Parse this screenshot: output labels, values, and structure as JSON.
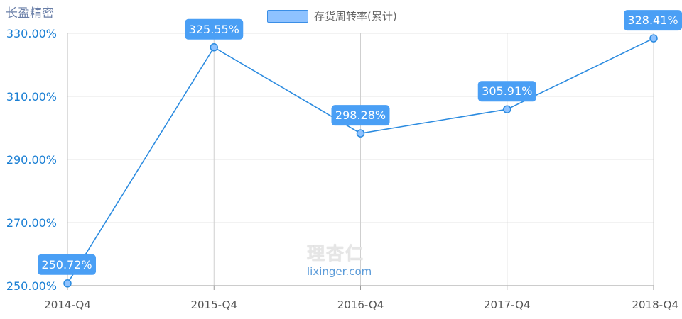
{
  "company_name": "长盈精密",
  "watermark": {
    "cn": "理杏仁",
    "url": "lixinger.com"
  },
  "colors": {
    "line": "#2b8be0",
    "label_bg": "#4a9ff5",
    "label_text": "#ffffff",
    "axis_text": "#1a7fd4",
    "grid": "#e5e5e5"
  },
  "chart_data": {
    "type": "line",
    "categories": [
      "2014-Q4",
      "2015-Q4",
      "2016-Q4",
      "2017-Q4",
      "2018-Q4"
    ],
    "series": [
      {
        "name": "存货周转率(累计)",
        "values": [
          250.72,
          325.55,
          298.28,
          305.91,
          328.41
        ]
      }
    ],
    "data_labels": [
      "250.72%",
      "325.55%",
      "298.28%",
      "305.91%",
      "328.41%"
    ],
    "y_ticks": [
      "250.00%",
      "270.00%",
      "290.00%",
      "310.00%",
      "330.00%"
    ],
    "ylim": [
      250,
      330
    ],
    "legend": "top-center",
    "grid": true
  }
}
